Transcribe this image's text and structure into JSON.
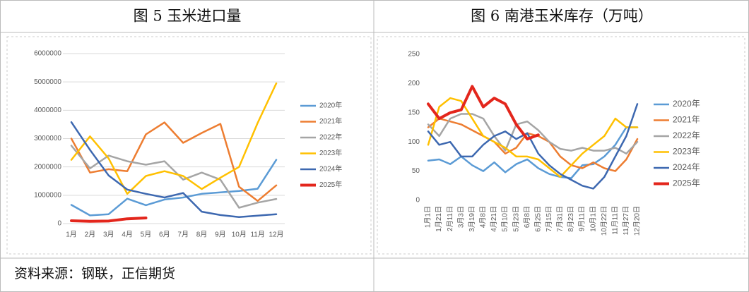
{
  "chart_data": [
    {
      "type": "line",
      "title": "图 5  玉米进口量",
      "categories": [
        "1月",
        "2月",
        "3月",
        "4月",
        "5月",
        "6月",
        "7月",
        "8月",
        "9月",
        "10月",
        "11月",
        "12月"
      ],
      "series": [
        {
          "name": "2020年",
          "color": "#5b9bd5",
          "values": [
            660000,
            290000,
            330000,
            880000,
            650000,
            850000,
            920000,
            1050000,
            1100000,
            1150000,
            1230000,
            2250000
          ]
        },
        {
          "name": "2021年",
          "color": "#ed7d31",
          "values": [
            3000000,
            1800000,
            1920000,
            1850000,
            3150000,
            3570000,
            2850000,
            3200000,
            3520000,
            1300000,
            800000,
            1350000
          ]
        },
        {
          "name": "2022年",
          "color": "#a5a5a5",
          "values": [
            2750000,
            1950000,
            2400000,
            2200000,
            2080000,
            2200000,
            1550000,
            1800000,
            1550000,
            560000,
            740000,
            870000
          ]
        },
        {
          "name": "2023年",
          "color": "#ffc000",
          "values": [
            2250000,
            3080000,
            2300000,
            1050000,
            1680000,
            1850000,
            1680000,
            1220000,
            1620000,
            2000000,
            3550000,
            4950000
          ]
        },
        {
          "name": "2024年",
          "color": "#3d68b0",
          "values": [
            3580000,
            2600000,
            1700000,
            1200000,
            1050000,
            920000,
            1080000,
            420000,
            300000,
            230000,
            280000,
            330000
          ]
        },
        {
          "name": "2025年",
          "color": "#e3261c",
          "values": [
            100000,
            80000,
            90000,
            170000,
            200000,
            null,
            null,
            null,
            null,
            null,
            null,
            null
          ]
        }
      ],
      "ylim": [
        0,
        6000000
      ],
      "yticks": [
        0,
        1000000,
        2000000,
        3000000,
        4000000,
        5000000,
        6000000
      ],
      "grid": true,
      "legend": "right"
    },
    {
      "type": "line",
      "title": "图 6  南港玉米库存（万吨）",
      "categories": [
        "1月1日",
        "1月21日",
        "2月11日",
        "3月3日",
        "3月19日",
        "4月8日",
        "4月21日",
        "5月10日",
        "5月23日",
        "6月8日",
        "6月25日",
        "7月15日",
        "7月31日",
        "8月23日",
        "9月11日",
        "10月1日",
        "10月22日",
        "11月11日",
        "11月27日",
        "12月20日"
      ],
      "series": [
        {
          "name": "2020年",
          "color": "#5b9bd5",
          "values": [
            68,
            70,
            62,
            75,
            60,
            50,
            65,
            48,
            62,
            70,
            55,
            45,
            40,
            38,
            60,
            62,
            75,
            95,
            125,
            125
          ]
        },
        {
          "name": "2021年",
          "color": "#ed7d31",
          "values": [
            125,
            140,
            135,
            130,
            120,
            110,
            100,
            80,
            90,
            115,
            110,
            100,
            75,
            60,
            55,
            65,
            55,
            50,
            70,
            105
          ]
        },
        {
          "name": "2022年",
          "color": "#a5a5a5",
          "values": [
            130,
            110,
            140,
            148,
            148,
            140,
            110,
            85,
            130,
            135,
            120,
            100,
            88,
            85,
            90,
            85,
            85,
            90,
            80,
            100
          ]
        },
        {
          "name": "2023年",
          "color": "#ffc000",
          "values": [
            95,
            160,
            175,
            170,
            140,
            110,
            100,
            90,
            75,
            75,
            70,
            55,
            40,
            60,
            80,
            95,
            110,
            140,
            125,
            125
          ]
        },
        {
          "name": "2024年",
          "color": "#3d68b0",
          "values": [
            118,
            95,
            100,
            75,
            75,
            95,
            110,
            118,
            105,
            115,
            80,
            60,
            45,
            35,
            25,
            20,
            40,
            75,
            110,
            165
          ]
        },
        {
          "name": "2025年",
          "color": "#e3261c",
          "values": [
            165,
            140,
            150,
            155,
            195,
            160,
            175,
            165,
            130,
            105,
            112,
            null,
            null,
            null,
            null,
            null,
            null,
            null,
            null,
            null
          ]
        }
      ],
      "ylim": [
        0,
        250
      ],
      "yticks": [
        0,
        50,
        100,
        150,
        200,
        250
      ],
      "grid": false,
      "legend": "right"
    }
  ],
  "source": "资料来源：钢联，正信期货"
}
